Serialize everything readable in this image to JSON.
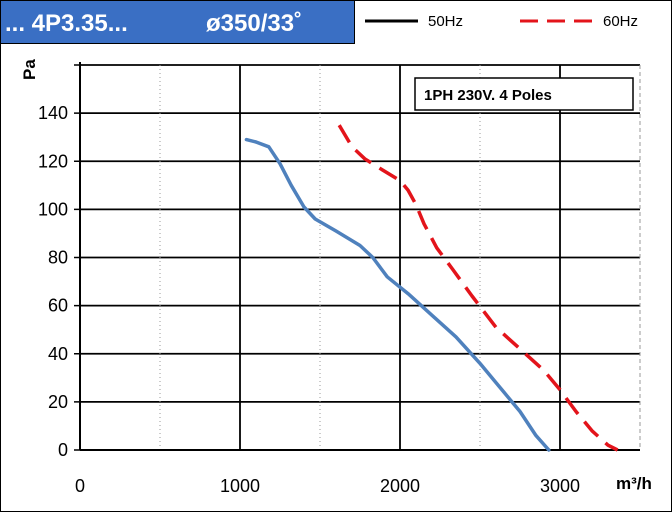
{
  "header": {
    "title_left": "... 4P3.35...",
    "title_right": "ø350/33˚"
  },
  "colors": {
    "title_bg": "#3a6fc4",
    "series_50hz": "#4f81bd",
    "series_60hz": "#e3141b"
  },
  "chart_data": {
    "type": "line",
    "xlabel": "m³/h",
    "ylabel": "Pa",
    "xlim": [
      0,
      3500
    ],
    "ylim": [
      0,
      160
    ],
    "x_ticks": [
      0,
      1000,
      2000,
      3000
    ],
    "y_ticks": [
      0,
      20,
      40,
      60,
      80,
      100,
      120,
      140
    ],
    "annotation": "1PH 230V.  4 Poles",
    "legend_position": "top",
    "grid": true,
    "series": [
      {
        "name": "50Hz",
        "color": "#4f81bd",
        "dash": "solid",
        "points": [
          [
            1040,
            129
          ],
          [
            1100,
            128
          ],
          [
            1180,
            126
          ],
          [
            1250,
            119
          ],
          [
            1320,
            110
          ],
          [
            1400,
            101
          ],
          [
            1470,
            96
          ],
          [
            1600,
            91
          ],
          [
            1750,
            85
          ],
          [
            1830,
            80
          ],
          [
            1920,
            72
          ],
          [
            2050,
            65
          ],
          [
            2200,
            56
          ],
          [
            2350,
            47
          ],
          [
            2500,
            36
          ],
          [
            2650,
            24
          ],
          [
            2750,
            16
          ],
          [
            2850,
            6
          ],
          [
            2930,
            0
          ]
        ]
      },
      {
        "name": "60Hz",
        "color": "#e3141b",
        "dash": "dashed",
        "points": [
          [
            1620,
            135
          ],
          [
            1700,
            126
          ],
          [
            1780,
            121
          ],
          [
            1900,
            116
          ],
          [
            2000,
            112
          ],
          [
            2050,
            108
          ],
          [
            2100,
            102
          ],
          [
            2150,
            94
          ],
          [
            2230,
            84
          ],
          [
            2330,
            75
          ],
          [
            2450,
            64
          ],
          [
            2600,
            51
          ],
          [
            2750,
            42
          ],
          [
            2900,
            33
          ],
          [
            3000,
            25
          ],
          [
            3100,
            16
          ],
          [
            3200,
            8
          ],
          [
            3300,
            2
          ],
          [
            3360,
            0
          ]
        ]
      }
    ]
  }
}
